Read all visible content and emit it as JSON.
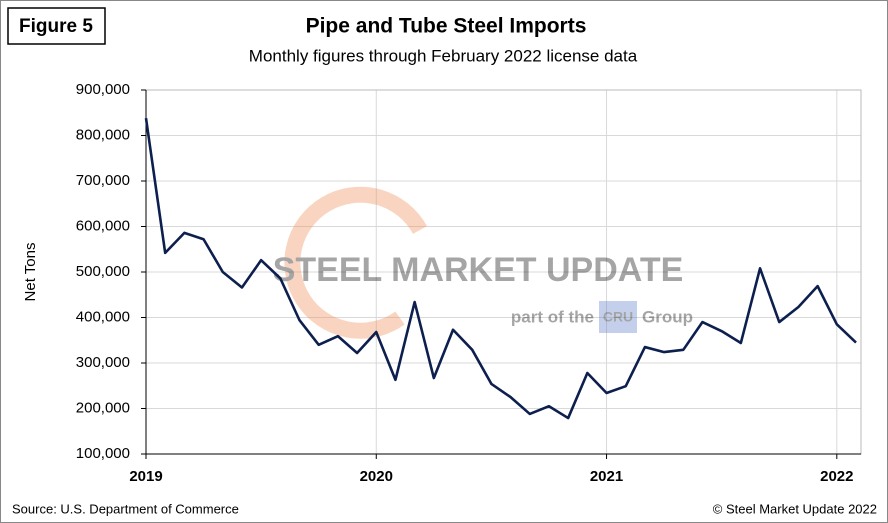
{
  "figure_label": "Figure 5",
  "source": "Source: U.S. Department of Commerce",
  "copyright": "© Steel Market Update 2022",
  "watermark": {
    "brand": "STEEL MARKET UPDATE",
    "tagline": "part of the",
    "group_logo": "CRU",
    "group": "Group"
  },
  "chart_data": {
    "type": "line",
    "title": "Pipe and Tube Steel Imports",
    "subtitle": "Monthly figures through February 2022 license data",
    "y_label": "Net Tons",
    "categories": [
      "2019",
      null,
      null,
      null,
      null,
      null,
      null,
      null,
      null,
      null,
      null,
      null,
      "2020",
      null,
      null,
      null,
      null,
      null,
      null,
      null,
      null,
      null,
      null,
      null,
      "2021",
      null,
      null,
      null,
      null,
      null,
      null,
      null,
      null,
      null,
      null,
      null,
      "2022",
      null
    ],
    "series": [
      {
        "name": "Net Tons",
        "color": "#0d1f4f",
        "values": [
          838000,
          542000,
          586000,
          572000,
          500000,
          466000,
          526000,
          486000,
          394000,
          340000,
          359000,
          322000,
          368000,
          263000,
          434000,
          267000,
          373000,
          329000,
          254000,
          225000,
          188000,
          205000,
          179000,
          278000,
          234000,
          249000,
          335000,
          324000,
          329000,
          390000,
          370000,
          344000,
          508000,
          390000,
          423000,
          469000,
          385000,
          345000
        ]
      }
    ],
    "ylim": [
      100000,
      900000
    ],
    "yticks": [
      {
        "value": 100000,
        "label": "100,000"
      },
      {
        "value": 200000,
        "label": "200,000"
      },
      {
        "value": 300000,
        "label": "300,000"
      },
      {
        "value": 400000,
        "label": "400,000"
      },
      {
        "value": 500000,
        "label": "500,000"
      },
      {
        "value": 600000,
        "label": "600,000"
      },
      {
        "value": 700000,
        "label": "700,000"
      },
      {
        "value": 800000,
        "label": "800,000"
      },
      {
        "value": 900000,
        "label": "900,000"
      }
    ],
    "grid": true
  }
}
